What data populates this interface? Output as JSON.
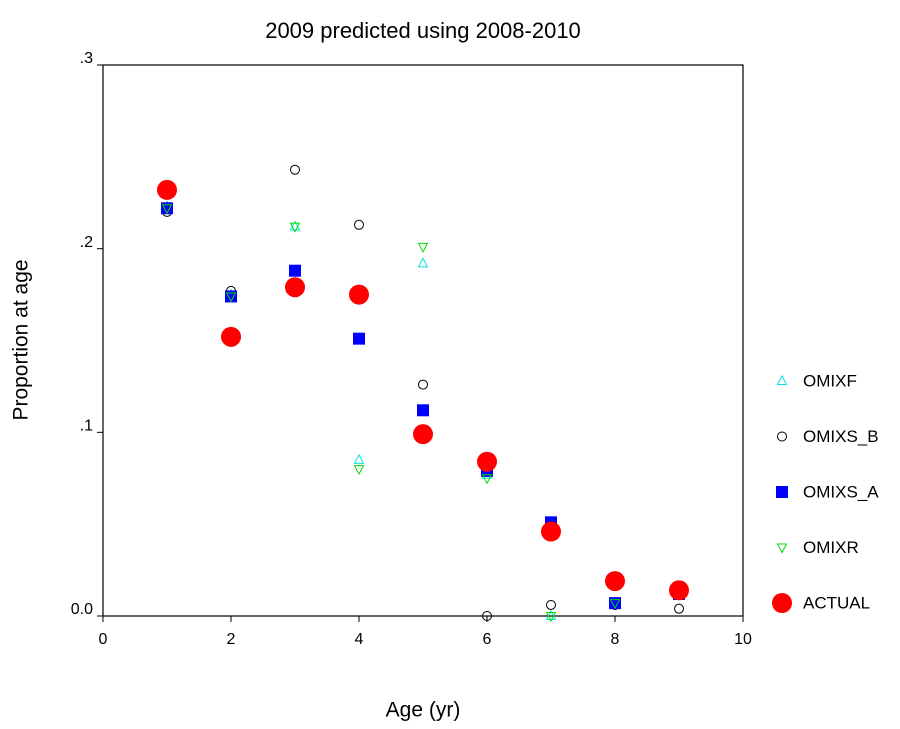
{
  "chart_data": {
    "type": "scatter",
    "title": "2009 predicted using 2008-2010",
    "x_label": "Age (yr)",
    "y_label": "Proportion at age",
    "xlim": [
      0,
      10
    ],
    "xticks": [
      0,
      2,
      4,
      6,
      8,
      10
    ],
    "ylim": [
      0,
      0.3
    ],
    "yticks": [
      {
        "value": 0,
        "label": "0.0"
      },
      {
        "value": 0.1,
        "label": ".1"
      },
      {
        "value": 0.2,
        "label": ".2"
      },
      {
        "value": 0.3,
        "label": ".3"
      }
    ],
    "grid": false,
    "legend": "right",
    "x": [
      1,
      2,
      3,
      4,
      5,
      6,
      7,
      8,
      9
    ],
    "series": [
      {
        "name": "OMIXF",
        "color": "#00e5e5",
        "marker": "triangle-up",
        "values": [
          0.223,
          0.175,
          0.212,
          0.085,
          0.192,
          0.077,
          0.0,
          0.007,
          0.012
        ]
      },
      {
        "name": "OMIXS_B",
        "color": "#000000",
        "marker": "circle-open",
        "values": [
          0.22,
          0.177,
          0.243,
          0.213,
          0.126,
          0.0,
          0.006,
          0.006,
          0.004
        ]
      },
      {
        "name": "OMIXS_A",
        "color": "#0000ff",
        "marker": "square",
        "values": [
          0.222,
          0.174,
          0.188,
          0.151,
          0.112,
          0.079,
          0.051,
          0.007,
          0.012
        ]
      },
      {
        "name": "OMIXR",
        "color": "#00dd00",
        "marker": "triangle-down",
        "values": [
          0.222,
          0.174,
          0.212,
          0.08,
          0.201,
          0.075,
          0.0,
          0.007,
          0.012
        ]
      },
      {
        "name": "ACTUAL",
        "color": "#ff0000",
        "marker": "circle-big",
        "values": [
          0.232,
          0.152,
          0.179,
          0.175,
          0.099,
          0.084,
          0.046,
          0.019,
          0.014
        ]
      }
    ]
  }
}
